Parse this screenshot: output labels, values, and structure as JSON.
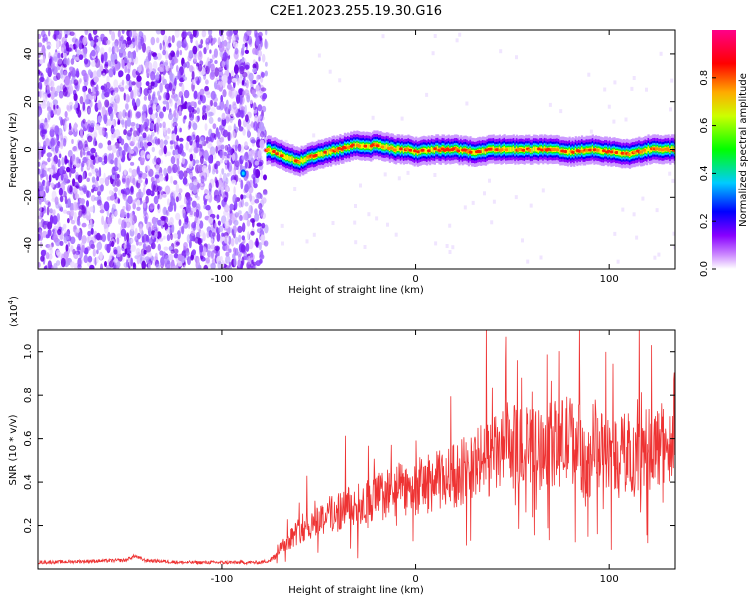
{
  "title": "C2E1.2023.255.19.30.G16",
  "chart_data": [
    {
      "type": "heatmap",
      "xlabel": "Height of straight line (km)",
      "ylabel": "Frequency (Hz)",
      "xlim": [
        -195,
        134
      ],
      "ylim": [
        -50,
        50
      ],
      "x_ticks": [
        -100,
        0,
        100
      ],
      "y_ticks": [
        -40,
        -20,
        0,
        20,
        40
      ],
      "noise_region_x": [
        -195,
        -77
      ],
      "ridge": {
        "x": [
          -77,
          -70,
          -65,
          -60,
          -55,
          -50,
          -45,
          -40,
          -35,
          -30,
          -25,
          -20,
          -15,
          -10,
          -5,
          0,
          10,
          20,
          30,
          40,
          50,
          60,
          70,
          80,
          90,
          100,
          110,
          120,
          134
        ],
        "frequency": [
          0,
          -2,
          -4,
          -5,
          -3,
          -2,
          -1,
          0,
          1,
          2,
          1,
          2,
          1,
          0,
          0,
          -1,
          0,
          0,
          -1,
          0,
          0,
          0,
          0,
          -1,
          0,
          -1,
          -2,
          0,
          0
        ]
      },
      "colorbar": {
        "label": "Normalized spectral amplitude",
        "ticks": [
          "0.0",
          "0.2",
          "0.4",
          "0.6",
          "0.8"
        ],
        "range": [
          0,
          1
        ],
        "colors": [
          "#ffffff",
          "#8800ff",
          "#0000ff",
          "#00ffff",
          "#00ff00",
          "#ffff00",
          "#ff8800",
          "#ff0000",
          "#ff0088"
        ]
      }
    },
    {
      "type": "line",
      "xlabel": "Height of straight line (km)",
      "ylabel": "SNR (10 * v/v)",
      "exponent_label": "(x10",
      "exponent_power": "4",
      "exponent_close": ")",
      "xlim": [
        -195,
        134
      ],
      "ylim": [
        0,
        1.1
      ],
      "x_ticks": [
        -100,
        0,
        100
      ],
      "y_ticks": [
        0.2,
        0.4,
        0.6,
        0.8,
        1.0
      ],
      "series_color": "#ee3333",
      "x": [
        -195,
        -150,
        -145,
        -140,
        -120,
        -100,
        -80,
        -75,
        -70,
        -65,
        -60,
        -55,
        -50,
        -40,
        -30,
        -20,
        -10,
        0,
        10,
        20,
        30,
        40,
        50,
        60,
        70,
        80,
        85,
        88,
        90,
        92,
        95,
        100,
        110,
        120,
        130,
        134
      ],
      "y": [
        0.03,
        0.04,
        0.06,
        0.04,
        0.03,
        0.03,
        0.03,
        0.04,
        0.1,
        0.14,
        0.18,
        0.2,
        0.23,
        0.27,
        0.29,
        0.33,
        0.36,
        0.38,
        0.4,
        0.43,
        0.48,
        0.52,
        0.56,
        0.55,
        0.57,
        0.6,
        0.58,
        0.42,
        0.5,
        0.6,
        0.55,
        0.52,
        0.54,
        0.55,
        0.58,
        0.55
      ]
    }
  ]
}
